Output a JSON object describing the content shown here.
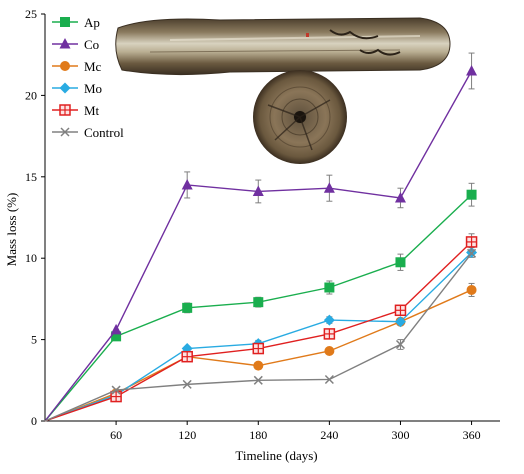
{
  "chart_data": {
    "type": "line",
    "xlabel": "Timeline  (days)",
    "ylabel": "Mass loss (%)",
    "ylim": [
      0,
      25
    ],
    "yticks": [
      0,
      5,
      10,
      15,
      20,
      25
    ],
    "x": [
      0,
      60,
      120,
      180,
      240,
      300,
      360
    ],
    "xticks": [
      "60",
      "120",
      "180",
      "240",
      "300",
      "360"
    ],
    "grid": false,
    "legend_position": "top-left",
    "series": [
      {
        "name": "Ap",
        "color": "#1aae4e",
        "marker": "square",
        "values": [
          0,
          5.2,
          6.95,
          7.3,
          8.2,
          9.75,
          13.9
        ],
        "errors": [
          0,
          0,
          0.3,
          0.3,
          0.4,
          0.5,
          0.7
        ]
      },
      {
        "name": "Co",
        "color": "#7030a0",
        "marker": "triangle",
        "values": [
          0,
          5.6,
          14.5,
          14.1,
          14.3,
          13.7,
          21.5
        ],
        "errors": [
          0,
          0,
          0.8,
          0.7,
          0.8,
          0.6,
          1.1
        ]
      },
      {
        "name": "Mc",
        "color": "#e07a1a",
        "marker": "circle",
        "values": [
          0,
          1.7,
          3.95,
          3.4,
          4.3,
          6.1,
          8.05
        ],
        "errors": [
          0,
          0,
          0,
          0,
          0,
          0,
          0.4
        ]
      },
      {
        "name": "Mo",
        "color": "#29abe2",
        "marker": "diamond",
        "values": [
          0,
          1.6,
          4.45,
          4.75,
          6.2,
          6.1,
          10.35
        ],
        "errors": [
          0,
          0,
          0,
          0.2,
          0.2,
          0.2,
          0.3
        ]
      },
      {
        "name": "Mt",
        "color": "#e02020",
        "marker": "square-plus",
        "values": [
          0,
          1.5,
          3.95,
          4.45,
          5.35,
          6.8,
          11.0
        ],
        "errors": [
          0,
          0,
          0,
          0,
          0,
          0.3,
          0.5
        ]
      },
      {
        "name": "Control",
        "color": "#808080",
        "marker": "x",
        "values": [
          0,
          1.9,
          2.25,
          2.5,
          2.55,
          4.7,
          10.3
        ],
        "errors": [
          0,
          0,
          0,
          0,
          0,
          0.3,
          0
        ]
      }
    ]
  },
  "photos": {
    "log": {
      "name": "wood-log-photo"
    },
    "disc": {
      "name": "wood-cross-section-photo"
    }
  }
}
